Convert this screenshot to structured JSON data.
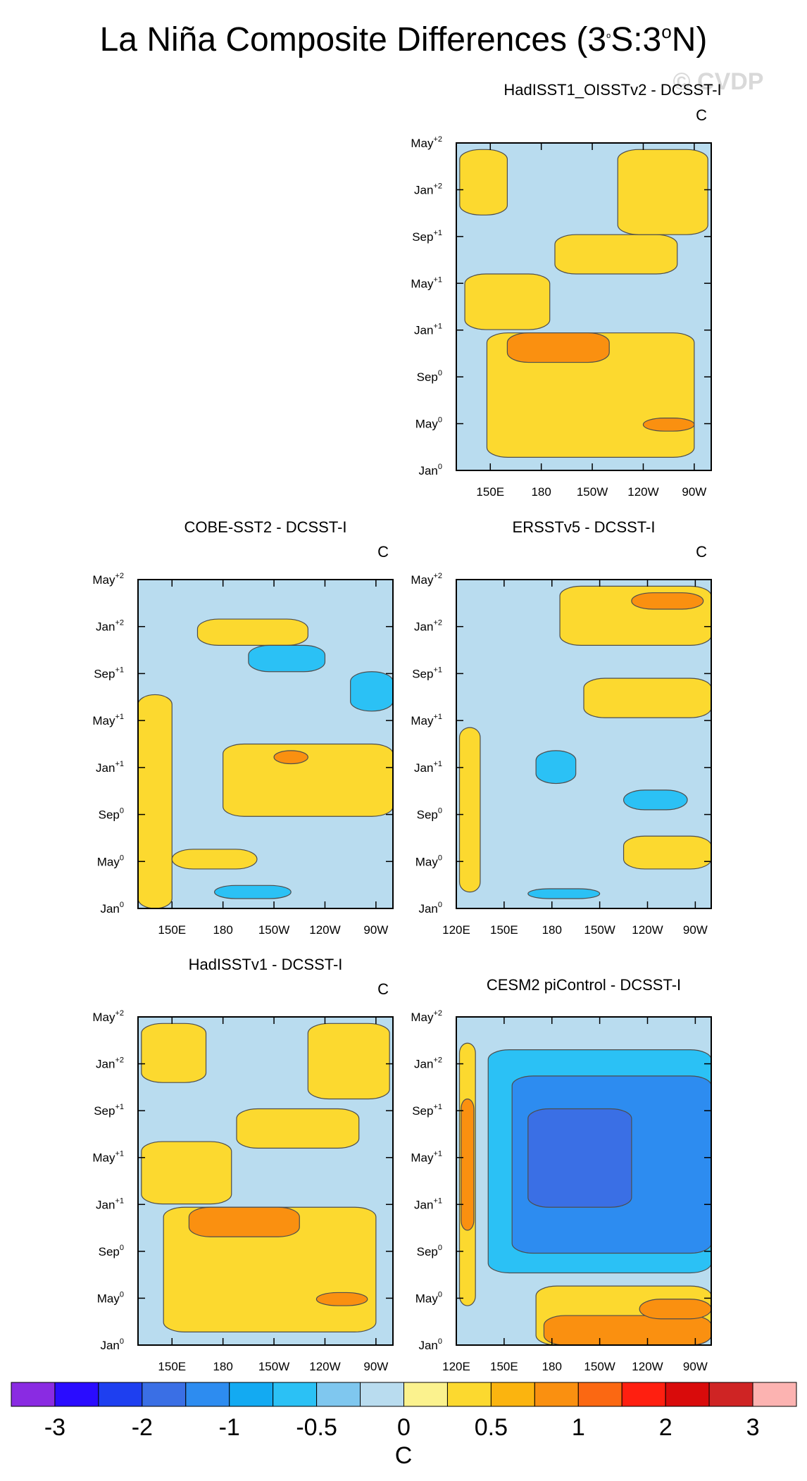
{
  "figure": {
    "title_main": "La Niña Composite Differences (3",
    "title_mid": "S:3",
    "title_end": "N)",
    "title_sup": "o",
    "watermark": "© CVDP"
  },
  "colors": {
    "contour_line": "#4d4d4d",
    "frame": "#000000",
    "yellow_fill": "#fbf28e",
    "blue_fill": "#b9dcef"
  },
  "chart_data": [
    {
      "type": "heatmap",
      "title": "HadISST1_OISSTv2 - DCSST-I",
      "units": "C",
      "y_ticks": [
        {
          "m": "Jan",
          "s": "0"
        },
        {
          "m": "May",
          "s": "0"
        },
        {
          "m": "Sep",
          "s": "0"
        },
        {
          "m": "Jan",
          "s": "+1"
        },
        {
          "m": "May",
          "s": "+1"
        },
        {
          "m": "Sep",
          "s": "+1"
        },
        {
          "m": "Jan",
          "s": "+2"
        },
        {
          "m": "May",
          "s": "+2"
        }
      ],
      "x_ticks": [
        "150E",
        "180",
        "150W",
        "120W",
        "90W"
      ],
      "xlim_deg_east": [
        130,
        280
      ],
      "x_tick_values_deg_east": [
        150,
        180,
        210,
        240,
        270
      ],
      "regions": [
        {
          "level": 0.25,
          "x": [
            148,
            270
          ],
          "y": [
            0.04,
            0.42
          ]
        },
        {
          "level": 0.25,
          "x": [
            135,
            185
          ],
          "y": [
            0.43,
            0.6
          ]
        },
        {
          "level": 0.25,
          "x": [
            188,
            260
          ],
          "y": [
            0.6,
            0.72
          ]
        },
        {
          "level": 0.25,
          "x": [
            132,
            160
          ],
          "y": [
            0.78,
            0.98
          ]
        },
        {
          "level": 0.25,
          "x": [
            225,
            278
          ],
          "y": [
            0.72,
            0.98
          ]
        },
        {
          "level": 0.75,
          "x": [
            160,
            220
          ],
          "y": [
            0.33,
            0.42
          ]
        },
        {
          "level": 0.75,
          "x": [
            240,
            270
          ],
          "y": [
            0.12,
            0.16
          ]
        }
      ]
    },
    {
      "type": "heatmap",
      "title": "COBE-SST2 - DCSST-I",
      "units": "C",
      "y_ticks": [
        {
          "m": "Jan",
          "s": "0"
        },
        {
          "m": "May",
          "s": "0"
        },
        {
          "m": "Sep",
          "s": "0"
        },
        {
          "m": "Jan",
          "s": "+1"
        },
        {
          "m": "May",
          "s": "+1"
        },
        {
          "m": "Sep",
          "s": "+1"
        },
        {
          "m": "Jan",
          "s": "+2"
        },
        {
          "m": "May",
          "s": "+2"
        }
      ],
      "x_ticks": [
        "150E",
        "180",
        "150W",
        "120W",
        "90W"
      ],
      "xlim_deg_east": [
        130,
        280
      ],
      "x_tick_values_deg_east": [
        150,
        180,
        210,
        240,
        270
      ],
      "regions": [
        {
          "level": 0.25,
          "x": [
            130,
            150
          ],
          "y": [
            0.0,
            0.65
          ]
        },
        {
          "level": 0.25,
          "x": [
            180,
            280
          ],
          "y": [
            0.28,
            0.5
          ]
        },
        {
          "level": 0.25,
          "x": [
            165,
            230
          ],
          "y": [
            0.8,
            0.88
          ]
        },
        {
          "level": 0.25,
          "x": [
            150,
            200
          ],
          "y": [
            0.12,
            0.18
          ]
        },
        {
          "level": -0.75,
          "x": [
            195,
            240
          ],
          "y": [
            0.72,
            0.8
          ]
        },
        {
          "level": -0.75,
          "x": [
            255,
            280
          ],
          "y": [
            0.6,
            0.72
          ]
        },
        {
          "level": -0.75,
          "x": [
            175,
            220
          ],
          "y": [
            0.03,
            0.07
          ]
        },
        {
          "level": 0.75,
          "x": [
            210,
            230
          ],
          "y": [
            0.44,
            0.48
          ]
        }
      ]
    },
    {
      "type": "heatmap",
      "title": "ERSSTv5 - DCSST-I",
      "units": "C",
      "y_ticks": [
        {
          "m": "Jan",
          "s": "0"
        },
        {
          "m": "May",
          "s": "0"
        },
        {
          "m": "Sep",
          "s": "0"
        },
        {
          "m": "Jan",
          "s": "+1"
        },
        {
          "m": "May",
          "s": "+1"
        },
        {
          "m": "Sep",
          "s": "+1"
        },
        {
          "m": "Jan",
          "s": "+2"
        },
        {
          "m": "May",
          "s": "+2"
        }
      ],
      "x_ticks": [
        "120E",
        "150E",
        "180",
        "150W",
        "120W",
        "90W"
      ],
      "xlim_deg_east": [
        120,
        280
      ],
      "x_tick_values_deg_east": [
        120,
        150,
        180,
        210,
        240,
        270
      ],
      "regions": [
        {
          "level": 0.25,
          "x": [
            185,
            280
          ],
          "y": [
            0.8,
            0.98
          ]
        },
        {
          "level": 0.25,
          "x": [
            200,
            280
          ],
          "y": [
            0.58,
            0.7
          ]
        },
        {
          "level": 0.25,
          "x": [
            122,
            135
          ],
          "y": [
            0.05,
            0.55
          ]
        },
        {
          "level": 0.25,
          "x": [
            225,
            280
          ],
          "y": [
            0.12,
            0.22
          ]
        },
        {
          "level": -0.75,
          "x": [
            170,
            195
          ],
          "y": [
            0.38,
            0.48
          ]
        },
        {
          "level": -0.75,
          "x": [
            225,
            265
          ],
          "y": [
            0.3,
            0.36
          ]
        },
        {
          "level": -0.75,
          "x": [
            165,
            210
          ],
          "y": [
            0.03,
            0.06
          ]
        },
        {
          "level": 0.75,
          "x": [
            230,
            275
          ],
          "y": [
            0.91,
            0.96
          ]
        }
      ]
    },
    {
      "type": "heatmap",
      "title": "HadISSTv1 - DCSST-I",
      "units": "C",
      "y_ticks": [
        {
          "m": "Jan",
          "s": "0"
        },
        {
          "m": "May",
          "s": "0"
        },
        {
          "m": "Sep",
          "s": "0"
        },
        {
          "m": "Jan",
          "s": "+1"
        },
        {
          "m": "May",
          "s": "+1"
        },
        {
          "m": "Sep",
          "s": "+1"
        },
        {
          "m": "Jan",
          "s": "+2"
        },
        {
          "m": "May",
          "s": "+2"
        }
      ],
      "x_ticks": [
        "150E",
        "180",
        "150W",
        "120W",
        "90W"
      ],
      "xlim_deg_east": [
        130,
        280
      ],
      "x_tick_values_deg_east": [
        150,
        180,
        210,
        240,
        270
      ],
      "regions": [
        {
          "level": 0.25,
          "x": [
            145,
            270
          ],
          "y": [
            0.04,
            0.42
          ]
        },
        {
          "level": 0.25,
          "x": [
            132,
            185
          ],
          "y": [
            0.43,
            0.62
          ]
        },
        {
          "level": 0.25,
          "x": [
            188,
            260
          ],
          "y": [
            0.6,
            0.72
          ]
        },
        {
          "level": 0.25,
          "x": [
            132,
            170
          ],
          "y": [
            0.8,
            0.98
          ]
        },
        {
          "level": 0.25,
          "x": [
            230,
            278
          ],
          "y": [
            0.75,
            0.98
          ]
        },
        {
          "level": 0.75,
          "x": [
            160,
            225
          ],
          "y": [
            0.33,
            0.42
          ]
        },
        {
          "level": 0.75,
          "x": [
            235,
            265
          ],
          "y": [
            0.12,
            0.16
          ]
        }
      ]
    },
    {
      "type": "heatmap",
      "title": "CESM2 piControl - DCSST-I",
      "units": "C",
      "y_ticks": [
        {
          "m": "Jan",
          "s": "0"
        },
        {
          "m": "May",
          "s": "0"
        },
        {
          "m": "Sep",
          "s": "0"
        },
        {
          "m": "Jan",
          "s": "+1"
        },
        {
          "m": "May",
          "s": "+1"
        },
        {
          "m": "Sep",
          "s": "+1"
        },
        {
          "m": "Jan",
          "s": "+2"
        },
        {
          "m": "May",
          "s": "+2"
        }
      ],
      "x_ticks": [
        "120E",
        "150E",
        "180",
        "150W",
        "120W",
        "90W"
      ],
      "xlim_deg_east": [
        120,
        280
      ],
      "x_tick_values_deg_east": [
        120,
        150,
        180,
        210,
        240,
        270
      ],
      "regions": [
        {
          "level": -0.75,
          "x": [
            140,
            280
          ],
          "y": [
            0.22,
            0.9
          ]
        },
        {
          "level": -1.25,
          "x": [
            155,
            280
          ],
          "y": [
            0.28,
            0.82
          ]
        },
        {
          "level": -1.75,
          "x": [
            165,
            230
          ],
          "y": [
            0.42,
            0.72
          ]
        },
        {
          "level": 0.25,
          "x": [
            122,
            132
          ],
          "y": [
            0.12,
            0.92
          ]
        },
        {
          "level": 0.75,
          "x": [
            123,
            131
          ],
          "y": [
            0.35,
            0.75
          ]
        },
        {
          "level": 0.25,
          "x": [
            170,
            280
          ],
          "y": [
            0.0,
            0.18
          ]
        },
        {
          "level": 0.75,
          "x": [
            175,
            280
          ],
          "y": [
            0.0,
            0.09
          ]
        },
        {
          "level": 0.75,
          "x": [
            235,
            280
          ],
          "y": [
            0.08,
            0.14
          ]
        }
      ]
    }
  ],
  "colorbar": {
    "labels": [
      "-3",
      "-2",
      "-1",
      "-0.5",
      "0",
      "0.5",
      "1",
      "2",
      "3"
    ],
    "units": "C",
    "colors": [
      "#8a2be2",
      "#2a0cff",
      "#1e3ff0",
      "#3a6fe5",
      "#2d8cf0",
      "#13aaf2",
      "#2bc1f5",
      "#7fc7ef",
      "#b9dcef",
      "#fbf28e",
      "#fcd92f",
      "#fbb40f",
      "#fa9010",
      "#fb6812",
      "#ff1f10",
      "#d90b0b",
      "#cf2424",
      "#fcb3b1"
    ]
  }
}
